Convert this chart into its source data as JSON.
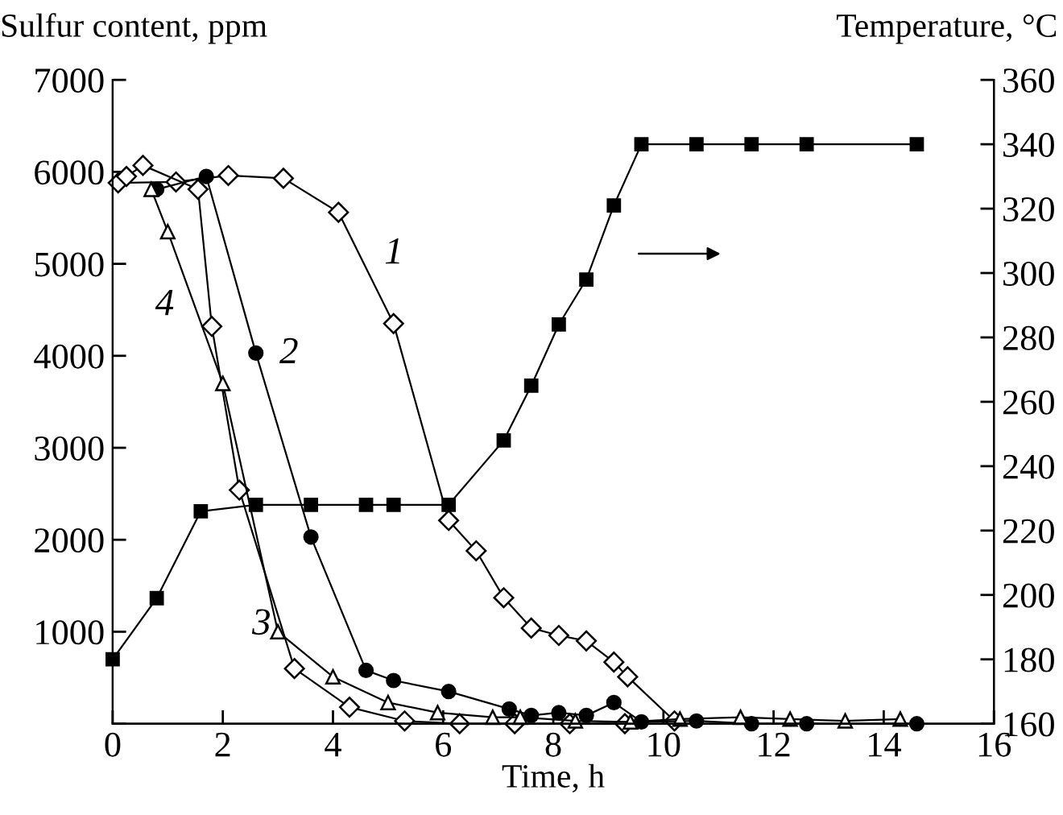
{
  "chart_data": {
    "type": "line",
    "xlabel": "Time, h",
    "ylabel": "Sulfur content, ppm",
    "y2label": "Temperature, °C",
    "xlim": [
      0,
      16
    ],
    "xticks": [
      0,
      2,
      4,
      6,
      8,
      10,
      12,
      14,
      16
    ],
    "ylim": [
      0,
      7000
    ],
    "yticks": [
      {
        "value": 0,
        "label": null
      },
      1000,
      2000,
      3000,
      4000,
      5000,
      6000,
      7000
    ],
    "y2lim": [
      160,
      360
    ],
    "y2ticks": [
      160,
      180,
      200,
      220,
      240,
      260,
      280,
      300,
      320,
      340,
      360
    ],
    "grid": false,
    "legend": false,
    "line_style": "solid",
    "series": [
      {
        "color": "#000000",
        "marker": "diamond",
        "x": [
          0.1,
          1.15,
          2.1,
          3.1,
          4.1,
          5.1,
          6.1,
          6.6,
          7.1,
          7.6,
          8.1,
          8.6,
          9.1,
          9.35,
          10.2
        ],
        "values": [
          5880,
          5890,
          5960,
          5930,
          5560,
          4350,
          2210,
          1880,
          1370,
          1040,
          960,
          900,
          670,
          510,
          30
        ]
      },
      {
        "color": "#000000",
        "marker": "circle",
        "x": [
          0.8,
          1.7,
          2.6,
          3.6,
          4.6,
          5.1,
          6.1,
          7.2,
          7.6,
          8.1,
          8.6,
          9.1,
          9.6,
          10.6,
          11.6,
          12.6,
          14.6
        ],
        "values": [
          5810,
          5950,
          4030,
          2030,
          580,
          470,
          350,
          160,
          90,
          120,
          90,
          230,
          20,
          30,
          0,
          0,
          0
        ]
      },
      {
        "color": "#000000",
        "marker": "diamond",
        "x": [
          0.25,
          0.55,
          1.55,
          1.8,
          2.3,
          3.3,
          4.3,
          5.3,
          6.3,
          7.3,
          8.3,
          9.3
        ],
        "values": [
          5950,
          6070,
          5810,
          4320,
          2540,
          600,
          180,
          30,
          0,
          0,
          0,
          0
        ]
      },
      {
        "color": "#000000",
        "marker": "triangle",
        "x": [
          0.7,
          1.0,
          2.0,
          3.0,
          4.0,
          5.0,
          5.9,
          6.9,
          7.4,
          8.4,
          9.4,
          10.3,
          11.4,
          12.3,
          13.3,
          14.3
        ],
        "values": [
          5810,
          5350,
          3700,
          1000,
          510,
          230,
          120,
          70,
          70,
          30,
          20,
          50,
          70,
          50,
          30,
          50
        ]
      },
      {
        "color": "#000000",
        "marker": "square",
        "axis": "y2",
        "x": [
          0,
          0.8,
          1.6,
          2.6,
          3.6,
          4.6,
          5.1,
          6.1,
          7.1,
          7.6,
          8.1,
          8.6,
          9.1,
          9.6,
          10.6,
          11.6,
          12.6,
          14.6
        ],
        "values": [
          180,
          199,
          226,
          228,
          228,
          228,
          228,
          228,
          248,
          265,
          284,
          298,
          321,
          340,
          340,
          340,
          340,
          340
        ]
      }
    ],
    "annotations": [
      "1",
      "2",
      "3",
      "4"
    ]
  }
}
